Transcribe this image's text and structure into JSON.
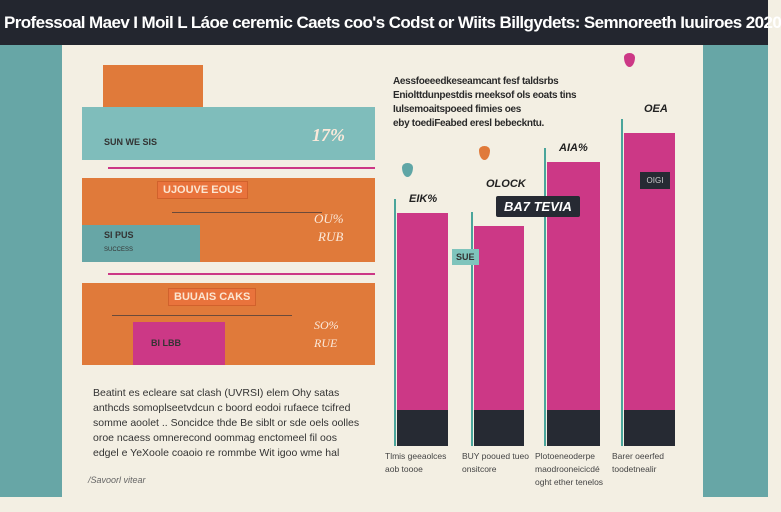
{
  "title": "Professoal Maev I Moil L Láoe ceremic Caets coo's Codst or Wiits Billgydets: Semnoreeth Iuuiroes 2020",
  "left_panel": {
    "row1": {
      "label": "SUN WE SIS",
      "value": "17%"
    },
    "row2": {
      "tag": "UJOUVE EOUS",
      "sub_label": "SI PUS",
      "sub_note": "SUCCESS",
      "value_line1": "OU%",
      "value_line2": "RUB"
    },
    "row3": {
      "tag": "BUUAIS CAKS",
      "box_label": "BI LBB",
      "value_line1": "SO%",
      "value_line2": "RUE"
    }
  },
  "paragraph": [
    "Beatint es ecleare sat clash (UVRSI) elem Ohy satas",
    "anthcds somoplseetvdcun c boord eodoi rufaece tcifred",
    "somme aoolet .. Soncidce thde Be siblt or sde oels oolles",
    "oroe ncaess omnerecond oommag enctomeel fil oos",
    "edgel e YeXoole coaoio re rommbe Wit igoo wme hal"
  ],
  "footnote": "/Savoorl vitear",
  "chart_description": [
    "Aessfoeeedkeseamcant fesf taldsrbs",
    "Eniolttdunpestdis rneeksof ols eoats tins",
    "Iulsemoaitspoeed fimies oes",
    "eby toediFeabed eresl bebeckntu."
  ],
  "chart_data": {
    "type": "bar",
    "categories": [
      "Tlmis geeaolces aob toooe",
      "BUY pooued tueo onsitcore",
      "Plotoeneoderpe maodrooneicicdé oght ether tenelos",
      "Barer oeerfed toodetnealir"
    ],
    "values": [
      233,
      220,
      284,
      313
    ],
    "data_labels": [
      "EIK%",
      "OLOCK",
      "AIA%",
      "OEA"
    ],
    "callouts": {
      "dark_tag": "BA7 TEVIA",
      "small_box": "SUE",
      "bar4_box": "OIGI"
    },
    "colors": {
      "bar": "#cc3886",
      "base": "#262a33",
      "accent": "#4aa59b",
      "drop_teal": "#5fa6a6",
      "drop_orange": "#e07a3a"
    }
  }
}
